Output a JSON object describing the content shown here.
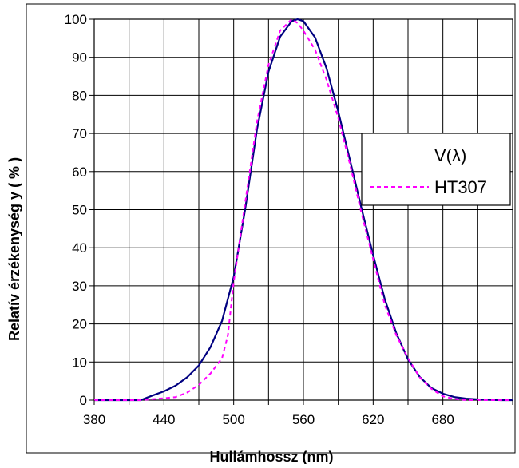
{
  "chart_data": {
    "type": "line",
    "title": "",
    "xlabel": "Hullámhossz (nm)",
    "ylabel": "Relatív érzékenység  y  ( % )",
    "xlim": [
      380,
      740
    ],
    "ylim": [
      0,
      100
    ],
    "xticks": [
      380,
      440,
      500,
      560,
      620,
      680
    ],
    "yticks": [
      0,
      10,
      20,
      30,
      40,
      50,
      60,
      70,
      80,
      90,
      100
    ],
    "x_gridlines": [
      380,
      410,
      440,
      470,
      500,
      530,
      560,
      590,
      620,
      650,
      680,
      710,
      740
    ],
    "grid": true,
    "legend": {
      "position": "right",
      "entries": [
        "V(λ)",
        "HT307"
      ]
    },
    "colors": {
      "V(λ)": "#000080",
      "HT307": "#ff00ff"
    },
    "series": [
      {
        "name": "V(λ)",
        "style": "solid",
        "x": [
          380,
          390,
          400,
          410,
          420,
          430,
          440,
          450,
          460,
          470,
          480,
          490,
          500,
          510,
          520,
          530,
          540,
          550,
          555,
          560,
          570,
          580,
          590,
          600,
          610,
          620,
          630,
          640,
          650,
          660,
          670,
          680,
          690,
          700,
          710,
          720,
          730,
          740
        ],
        "y": [
          0,
          0,
          0,
          0,
          0,
          1.2,
          2.3,
          3.8,
          6,
          9.1,
          13.9,
          20.8,
          32.3,
          50.3,
          71,
          86.2,
          95.4,
          99.5,
          100,
          99.5,
          95.2,
          87,
          75.7,
          63.1,
          50.3,
          38.1,
          26.5,
          17.5,
          10.7,
          6.1,
          3.2,
          1.7,
          0.8,
          0.4,
          0.2,
          0.1,
          0,
          0
        ]
      },
      {
        "name": "HT307",
        "style": "dashed",
        "x": [
          380,
          400,
          420,
          440,
          450,
          460,
          470,
          480,
          490,
          495,
          500,
          510,
          520,
          530,
          540,
          550,
          555,
          560,
          570,
          580,
          590,
          600,
          610,
          620,
          630,
          640,
          650,
          660,
          670,
          680,
          690,
          700,
          720,
          740
        ],
        "y": [
          0,
          0,
          0,
          0.5,
          0.8,
          2,
          4,
          7,
          11,
          17,
          31,
          52,
          73,
          88,
          97,
          100,
          99,
          97,
          92,
          84,
          74,
          62,
          49,
          37,
          25,
          17,
          11,
          6,
          3,
          1,
          0.3,
          0,
          0,
          0
        ]
      }
    ]
  }
}
